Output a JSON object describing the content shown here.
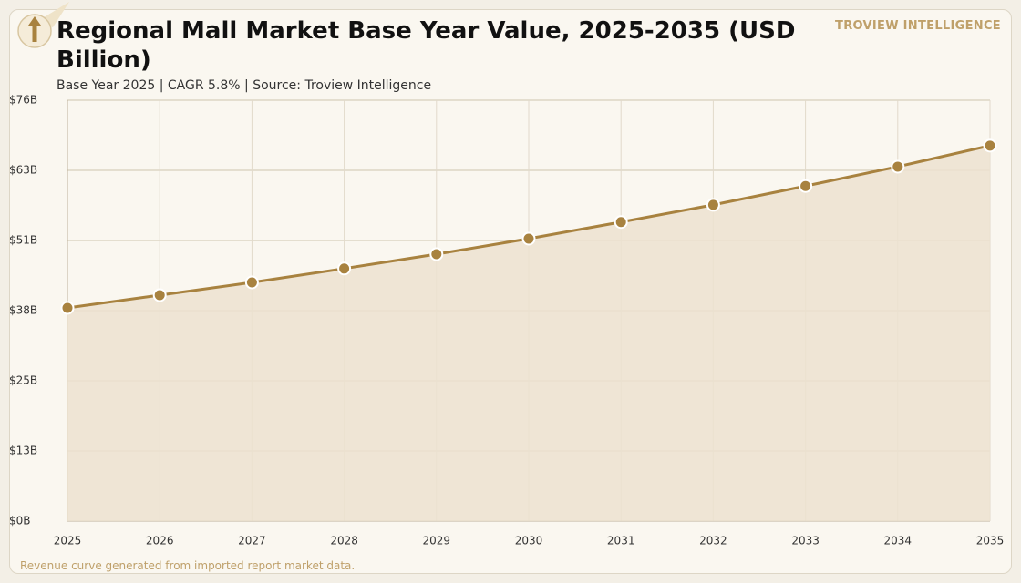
{
  "brand": "TROVIEW INTELLIGENCE",
  "note": "Revenue curve generated from imported report market data.",
  "chart_data": {
    "type": "area",
    "title": "Regional Mall Market Base Year Value, 2025-2035 (USD Billion)",
    "subtitle": "Base Year 2025 | CAGR 5.8% | Source: Troview Intelligence",
    "categories": [
      "2025",
      "2026",
      "2027",
      "2028",
      "2029",
      "2030",
      "2031",
      "2032",
      "2033",
      "2034",
      "2035"
    ],
    "values": [
      38.5,
      40.8,
      43.1,
      45.6,
      48.2,
      51.0,
      54.0,
      57.1,
      60.5,
      64.0,
      67.8
    ],
    "color": "#a8823f",
    "fill": "#ece2d0",
    "ylim": [
      0,
      76
    ],
    "yticks": [
      {
        "value": 0,
        "label": "$0B"
      },
      {
        "value": 12.67,
        "label": "$13B"
      },
      {
        "value": 25.33,
        "label": "$25B"
      },
      {
        "value": 38,
        "label": "$38B"
      },
      {
        "value": 50.67,
        "label": "$51B"
      },
      {
        "value": 63.33,
        "label": "$63B"
      },
      {
        "value": 76,
        "label": "$76B"
      }
    ],
    "grid": true
  }
}
